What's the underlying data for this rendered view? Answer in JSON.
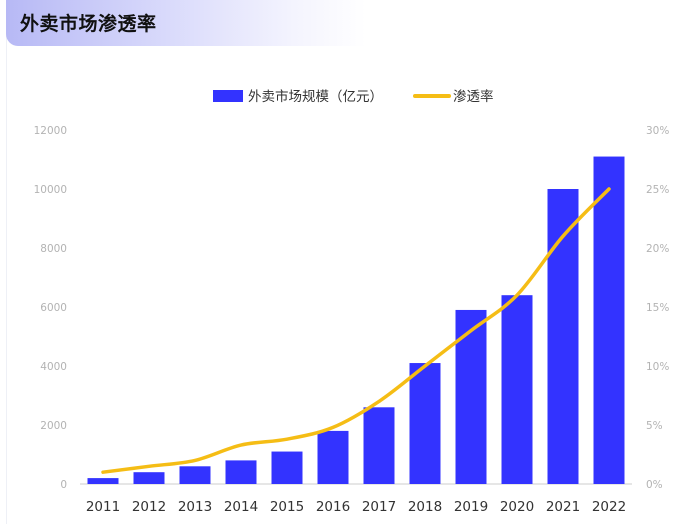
{
  "title": "外卖市场渗透率",
  "chart_data": {
    "type": "bar",
    "title": "",
    "categories": [
      "2011",
      "2012",
      "2013",
      "2014",
      "2015",
      "2016",
      "2017",
      "2018",
      "2019",
      "2020",
      "2021",
      "2022"
    ],
    "series": [
      {
        "name": "外卖市场规模（亿元）",
        "type": "bar",
        "axis": "left",
        "color": "#3333ff",
        "values": [
          200,
          400,
          600,
          800,
          1100,
          1800,
          2600,
          4100,
          5900,
          6400,
          10000,
          11100
        ]
      },
      {
        "name": "渗透率",
        "type": "line",
        "axis": "right",
        "color": "#f5bd15",
        "values": [
          1.0,
          1.5,
          2.0,
          3.3,
          3.8,
          4.8,
          7.0,
          10.0,
          13.0,
          16.0,
          21.0,
          25.0
        ]
      }
    ],
    "y_left": {
      "min": 0,
      "max": 12000,
      "ticks": [
        "0",
        "2000",
        "4000",
        "6000",
        "8000",
        "10000",
        "12000"
      ]
    },
    "y_right": {
      "min": 0,
      "max": 30,
      "ticks": [
        "0%",
        "5%",
        "10%",
        "15%",
        "20%",
        "25%",
        "30%"
      ]
    },
    "legend": "top-center",
    "grid": false
  }
}
